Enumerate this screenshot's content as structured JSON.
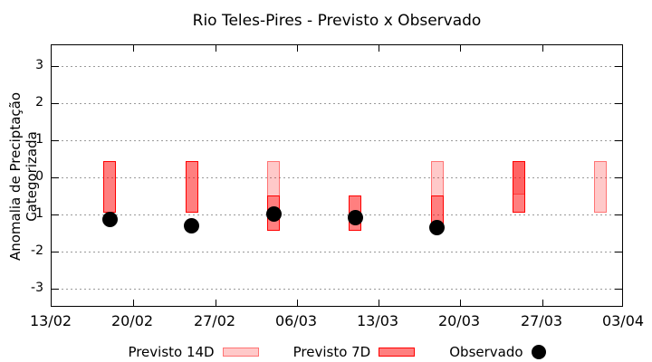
{
  "title": "Rio Teles-Pires - Previsto x Observado",
  "chart_data": {
    "type": "bar",
    "subtype": "forecast-range-bars-with-observed-scatter",
    "title": "Rio Teles-Pires - Previsto x Observado",
    "xlabel": "",
    "ylabel": "Anomalia de Preciptação Categorizada",
    "ylim": [
      -3.5,
      3.5
    ],
    "yticks": [
      3,
      2,
      1,
      0,
      -1,
      -2,
      -3
    ],
    "x_ticks": [
      "13/02",
      "20/02",
      "27/02",
      "06/03",
      "13/03",
      "20/03",
      "27/03",
      "03/04"
    ],
    "grid": "horizontal-dashed",
    "legend_position": "bottom-center",
    "series": [
      {
        "name": "Previsto 14D",
        "type": "range-bar",
        "style": "light",
        "points": [
          {
            "date": "04/03",
            "from": 0.45,
            "to": -0.5
          },
          {
            "date": "18/03",
            "from": 0.45,
            "to": -0.5
          },
          {
            "date": "25/03",
            "from": 0.45,
            "to": -0.45
          },
          {
            "date": "01/04",
            "from": 0.45,
            "to": -0.95
          }
        ]
      },
      {
        "name": "Previsto 7D",
        "type": "range-bar",
        "style": "dark",
        "points": [
          {
            "date": "18/02",
            "from": 0.45,
            "to": -0.95
          },
          {
            "date": "25/02",
            "from": 0.45,
            "to": -0.95
          },
          {
            "date": "04/03",
            "from": -0.5,
            "to": -1.45
          },
          {
            "date": "11/03",
            "from": -0.5,
            "to": -1.45
          },
          {
            "date": "18/03",
            "from": -0.5,
            "to": -1.3
          },
          {
            "date": "25/03",
            "from": 0.45,
            "to": -0.95
          }
        ]
      },
      {
        "name": "Observado",
        "type": "scatter",
        "points": [
          {
            "date": "18/02",
            "value": -1.15
          },
          {
            "date": "25/02",
            "value": -1.3
          },
          {
            "date": "04/03",
            "value": -1.0
          },
          {
            "date": "11/03",
            "value": -1.1
          },
          {
            "date": "18/03",
            "value": -1.35
          }
        ]
      }
    ],
    "colors": {
      "forecast_7d_fill": "rgba(255,0,0,0.5)",
      "forecast_7d_border": "#ff0000",
      "forecast_14d_fill": "rgba(255,0,0,0.21)",
      "forecast_14d_border": "rgba(255,0,0,0.42)",
      "observed": "#000000",
      "grid": "#9a9a9a",
      "axis": "#000000"
    }
  },
  "legend": {
    "items": [
      {
        "label": "Previsto 14D",
        "swatch": "light"
      },
      {
        "label": "Previsto 7D",
        "swatch": "dark"
      },
      {
        "label": "Observado",
        "swatch": "dot"
      }
    ]
  }
}
